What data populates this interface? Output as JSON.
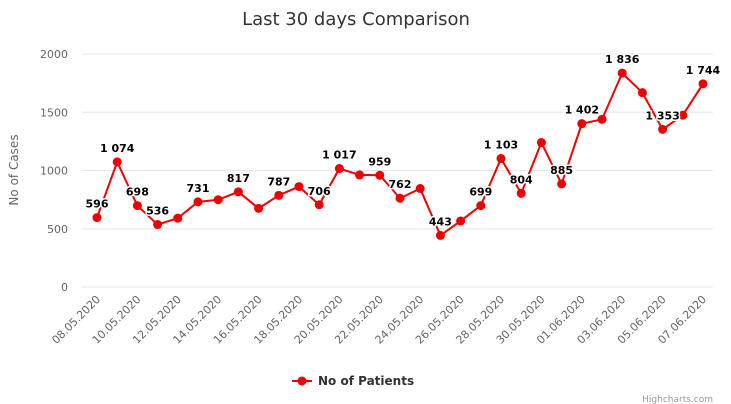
{
  "chart_data": {
    "type": "line",
    "title": "Last 30 days Comparison",
    "xlabel": "",
    "ylabel": "No of Cases",
    "ylim": [
      0,
      2000
    ],
    "yticks": [
      0,
      500,
      1000,
      1500,
      2000
    ],
    "grid": true,
    "legend_position": "bottom-center",
    "x": [
      "08.05.2020",
      "09.05.2020",
      "10.05.2020",
      "11.05.2020",
      "12.05.2020",
      "13.05.2020",
      "14.05.2020",
      "15.05.2020",
      "16.05.2020",
      "17.05.2020",
      "18.05.2020",
      "19.05.2020",
      "20.05.2020",
      "21.05.2020",
      "22.05.2020",
      "23.05.2020",
      "24.05.2020",
      "25.05.2020",
      "26.05.2020",
      "27.05.2020",
      "28.05.2020",
      "29.05.2020",
      "30.05.2020",
      "31.05.2020",
      "01.06.2020",
      "02.06.2020",
      "03.06.2020",
      "04.06.2020",
      "05.06.2020",
      "06.06.2020",
      "07.06.2020"
    ],
    "xtick_labels": [
      "08.05.2020",
      "10.05.2020",
      "12.05.2020",
      "14.05.2020",
      "16.05.2020",
      "18.05.2020",
      "20.05.2020",
      "22.05.2020",
      "24.05.2020",
      "26.05.2020",
      "28.05.2020",
      "30.05.2020",
      "01.06.2020",
      "03.06.2020",
      "05.06.2020",
      "07.06.2020"
    ],
    "series": [
      {
        "name": "No of Patients",
        "color": "#ee0000",
        "values": [
          596,
          1074,
          698,
          536,
          591,
          731,
          749,
          817,
          675,
          787,
          862,
          706,
          1017,
          962,
          959,
          762,
          845,
          443,
          567,
          699,
          1103,
          804,
          1240,
          885,
          1402,
          1439,
          1836,
          1668,
          1353,
          1475,
          1744
        ]
      }
    ],
    "data_labels": [
      {
        "index": 0,
        "text": "596"
      },
      {
        "index": 1,
        "text": "1 074"
      },
      {
        "index": 2,
        "text": "698"
      },
      {
        "index": 3,
        "text": "536"
      },
      {
        "index": 5,
        "text": "731"
      },
      {
        "index": 7,
        "text": "817"
      },
      {
        "index": 9,
        "text": "787"
      },
      {
        "index": 11,
        "text": "706"
      },
      {
        "index": 12,
        "text": "1 017"
      },
      {
        "index": 14,
        "text": "959"
      },
      {
        "index": 15,
        "text": "762"
      },
      {
        "index": 17,
        "text": "443"
      },
      {
        "index": 19,
        "text": "699"
      },
      {
        "index": 20,
        "text": "1 103"
      },
      {
        "index": 21,
        "text": "804"
      },
      {
        "index": 23,
        "text": "885"
      },
      {
        "index": 24,
        "text": "1 402"
      },
      {
        "index": 26,
        "text": "1 836"
      },
      {
        "index": 28,
        "text": "1 353"
      },
      {
        "index": 30,
        "text": "1 744"
      }
    ]
  },
  "credit": "Highcharts.com"
}
